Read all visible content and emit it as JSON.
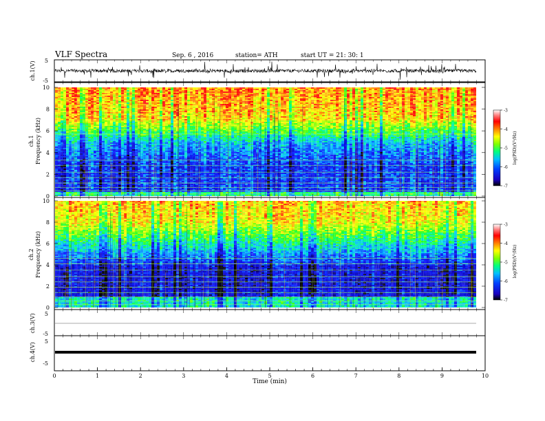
{
  "header": {
    "title": "VLF  Spectra",
    "date": "Sep. 6  , 2016",
    "station": "station= ATH",
    "start": "start  UT  =    21: 30: 1"
  },
  "chart_data": [
    {
      "type": "line",
      "name": "ch1-waveform",
      "ylabel": "ch.1(V)",
      "ylim": [
        -5,
        5
      ],
      "yticks": [
        "5",
        "-5"
      ],
      "xlim": [
        0,
        10
      ]
    },
    {
      "type": "heatmap",
      "name": "ch1-spectrogram",
      "ylabel_line1": "ch.1",
      "ylabel_line2": "Frequency  (kHz)",
      "ylim": [
        0,
        10
      ],
      "yticks": [
        "0",
        "2",
        "4",
        "6",
        "8",
        "10"
      ],
      "xlim": [
        0,
        9.8
      ],
      "colorbar": {
        "label": "log(PSD)(V²/Hz)",
        "range": [
          -7,
          -3
        ],
        "ticks": [
          "-3",
          "-4",
          "-5",
          "-6",
          "-7"
        ]
      }
    },
    {
      "type": "heatmap",
      "name": "ch2-spectrogram",
      "ylabel_line1": "ch.2",
      "ylabel_line2": "Frequency  (kHz)",
      "ylim": [
        0,
        10
      ],
      "yticks": [
        "0",
        "2",
        "4",
        "6",
        "8",
        "10"
      ],
      "xlim": [
        0,
        9.8
      ],
      "colorbar": {
        "label": "log(PSD)(V²/Hz)",
        "range": [
          -7,
          -3
        ],
        "ticks": [
          "-3",
          "-4",
          "-5",
          "-6",
          "-7"
        ]
      }
    },
    {
      "type": "line",
      "name": "ch3-waveform",
      "ylabel": "ch.3(V)",
      "ylim": [
        -5,
        5
      ],
      "yticks": [
        "5",
        "-5"
      ]
    },
    {
      "type": "line",
      "name": "ch4-waveform",
      "ylabel": "ch.4(V)",
      "ylim": [
        -5,
        5
      ],
      "yticks": [
        "5",
        "-5"
      ]
    }
  ],
  "xaxis": {
    "label": "Time  (min)",
    "ticks": [
      "0",
      "1",
      "2",
      "3",
      "4",
      "5",
      "6",
      "7",
      "8",
      "9",
      "10"
    ],
    "range": [
      0,
      10
    ]
  }
}
